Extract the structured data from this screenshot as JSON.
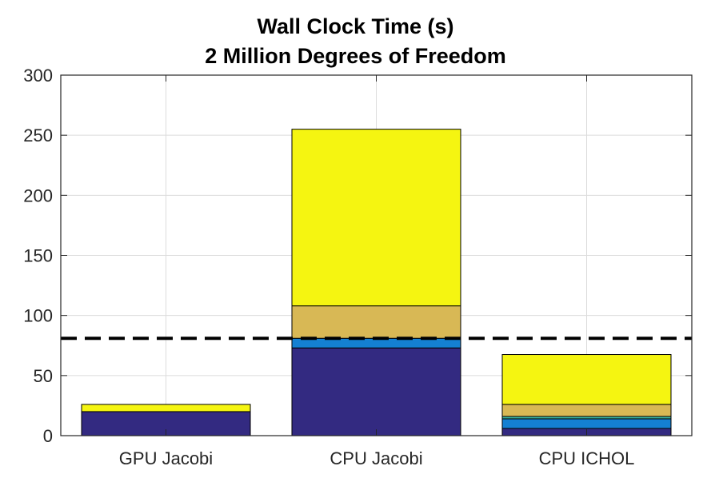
{
  "title": "Wall Clock Time (s)",
  "subtitle": "2 Million Degrees of Freedom",
  "chart_data": {
    "type": "bar",
    "stacked": true,
    "title": "Wall Clock Time (s)",
    "subtitle": "2 Million Degrees of Freedom",
    "categories": [
      "GPU Jacobi",
      "CPU Jacobi",
      "CPU ICHOL"
    ],
    "series": [
      {
        "values": [
          20,
          73,
          6
        ],
        "color": "#332A81"
      },
      {
        "values": [
          0,
          8,
          8
        ],
        "color": "#1480D2"
      },
      {
        "values": [
          0,
          0,
          2
        ],
        "color": "#3BB3A0"
      },
      {
        "values": [
          0,
          27,
          10
        ],
        "color": "#D8B855"
      },
      {
        "values": [
          6,
          147,
          41.5
        ],
        "color": "#F5F511"
      }
    ],
    "reference_line": {
      "y": 81,
      "style": "dashed",
      "color": "#000000"
    },
    "ylim": [
      0,
      300
    ],
    "yticks": [
      0,
      50,
      100,
      150,
      200,
      250,
      300
    ],
    "grid": true,
    "legend": "none"
  }
}
